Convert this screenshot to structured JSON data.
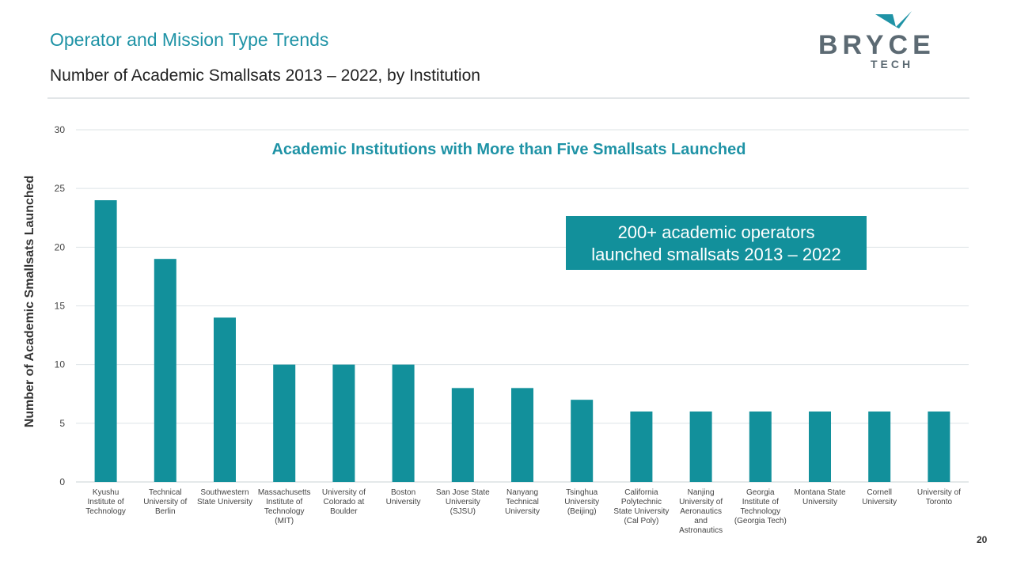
{
  "header": {
    "title": "Operator and Mission Type Trends",
    "subtitle": "Number of Academic Smallsats 2013 – 2022, by Institution"
  },
  "logo": {
    "brand": "BRYCE",
    "sub": "TECH",
    "color": "#5c6a73",
    "accent": "#1f93a6"
  },
  "callout": {
    "text": "200+ academic operators\nlaunched smallsats 2013 – 2022"
  },
  "page_number": "20",
  "colors": {
    "bar": "#12909b",
    "title": "#1f93a6",
    "grid": "#dde3e6"
  },
  "chart_data": {
    "type": "bar",
    "title": "Academic Institutions with More than Five Smallsats Launched",
    "xlabel": "",
    "ylabel": "Number of Academic Smallsats Launched",
    "ylim": [
      0,
      30
    ],
    "yticks": [
      0,
      5,
      10,
      15,
      20,
      25,
      30
    ],
    "grid": true,
    "categories": [
      "Kyushu Institute of Technology",
      "Technical University of Berlin",
      "Southwestern State University",
      "Massachusetts Institute of Technology (MIT)",
      "University of Colorado at Boulder",
      "Boston University",
      "San Jose State University (SJSU)",
      "Nanyang Technical University",
      "Tsinghua University (Beijing)",
      "California Polytechnic State University (Cal Poly)",
      "Nanjing University of Aeronautics and Astronautics",
      "Georgia Institute of Technology (Georgia Tech)",
      "Montana State University",
      "Cornell University",
      "University of Toronto"
    ],
    "category_lines": [
      [
        "Kyushu",
        "Institute of",
        "Technology"
      ],
      [
        "Technical",
        "University of",
        "Berlin"
      ],
      [
        "Southwestern",
        "State University"
      ],
      [
        "Massachusetts",
        "Institute of",
        "Technology",
        "(MIT)"
      ],
      [
        "University of",
        "Colorado at",
        "Boulder"
      ],
      [
        "Boston",
        "University"
      ],
      [
        "San Jose State",
        "University",
        "(SJSU)"
      ],
      [
        "Nanyang",
        "Technical",
        "University"
      ],
      [
        "Tsinghua",
        "University",
        "(Beijing)"
      ],
      [
        "California",
        "Polytechnic",
        "State University",
        "(Cal Poly)"
      ],
      [
        "Nanjing",
        "University of",
        "Aeronautics",
        "and",
        "Astronautics"
      ],
      [
        "Georgia",
        "Institute of",
        "Technology",
        "(Georgia Tech)"
      ],
      [
        "Montana State",
        "University"
      ],
      [
        "Cornell",
        "University"
      ],
      [
        "University of",
        "Toronto"
      ]
    ],
    "values": [
      24,
      19,
      14,
      10,
      10,
      10,
      8,
      8,
      7,
      6,
      6,
      6,
      6,
      6,
      6
    ]
  }
}
